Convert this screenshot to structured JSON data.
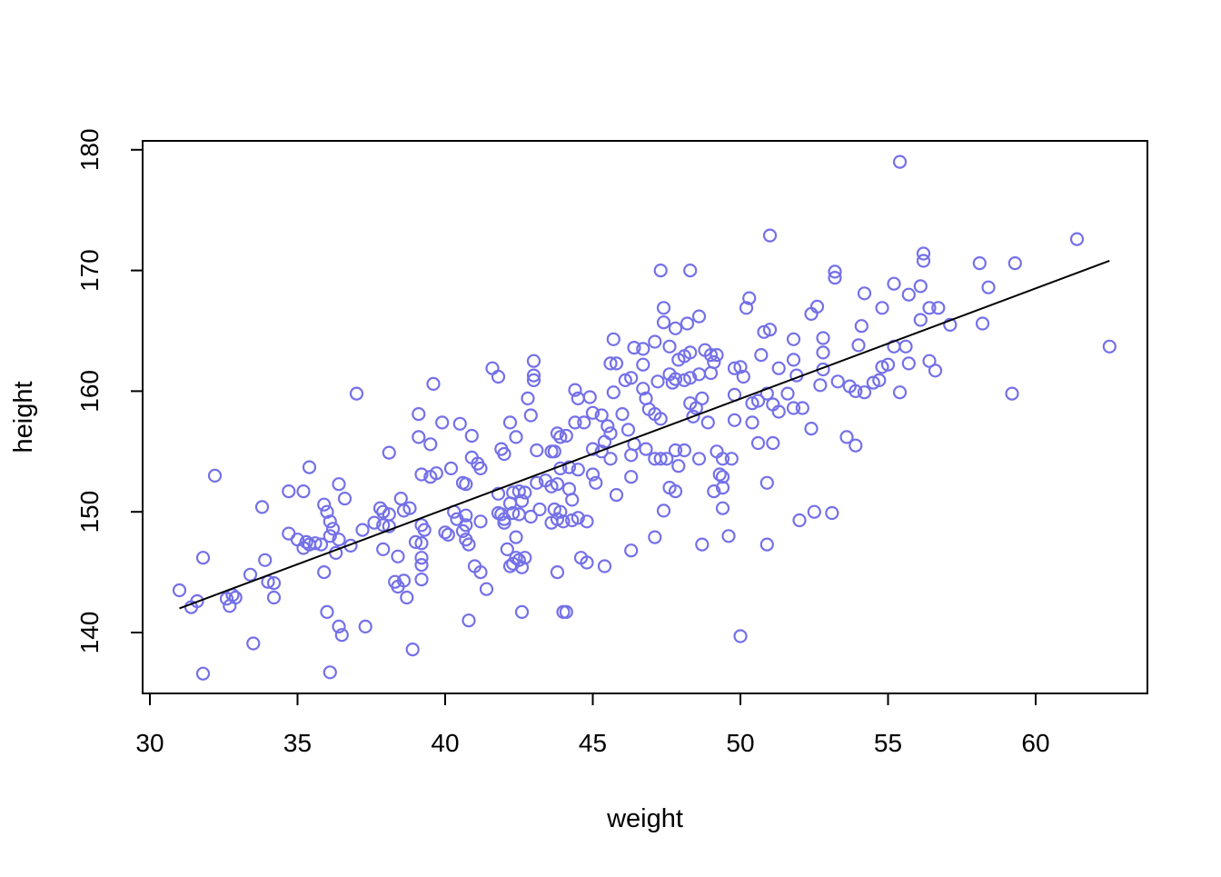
{
  "chart_data": {
    "type": "scatter",
    "title": "",
    "xlabel": "weight",
    "ylabel": "height",
    "x_ticks": [
      30,
      35,
      40,
      45,
      50,
      55,
      60
    ],
    "y_ticks": [
      140,
      150,
      160,
      170,
      180
    ],
    "xlim": [
      29.7,
      63.8
    ],
    "ylim": [
      134.9,
      180.8
    ],
    "grid": false,
    "legend": null,
    "point_color": "#7470E8",
    "line_color": "#000000",
    "frame_color": "#000000",
    "regression_line": {
      "x1": 31.0,
      "y1": 142.0,
      "x2": 62.5,
      "y2": 170.8
    },
    "points": [
      [
        55.4,
        179.0
      ],
      [
        51.0,
        172.9
      ],
      [
        61.4,
        172.6
      ],
      [
        56.2,
        171.4
      ],
      [
        56.2,
        170.8
      ],
      [
        58.1,
        170.6
      ],
      [
        59.3,
        170.6
      ],
      [
        47.3,
        170.0
      ],
      [
        48.3,
        170.0
      ],
      [
        53.2,
        169.9
      ],
      [
        53.2,
        169.4
      ],
      [
        55.2,
        168.9
      ],
      [
        56.1,
        168.7
      ],
      [
        58.4,
        168.6
      ],
      [
        54.2,
        168.1
      ],
      [
        55.7,
        168.0
      ],
      [
        50.3,
        167.7
      ],
      [
        52.6,
        167.0
      ],
      [
        50.2,
        166.9
      ],
      [
        47.4,
        166.9
      ],
      [
        54.8,
        166.9
      ],
      [
        56.4,
        166.9
      ],
      [
        56.7,
        166.9
      ],
      [
        52.4,
        166.4
      ],
      [
        48.6,
        166.2
      ],
      [
        47.4,
        165.7
      ],
      [
        47.8,
        165.2
      ],
      [
        48.2,
        165.6
      ],
      [
        51.0,
        165.1
      ],
      [
        54.1,
        165.4
      ],
      [
        56.1,
        165.9
      ],
      [
        57.1,
        165.5
      ],
      [
        58.2,
        165.6
      ],
      [
        45.7,
        164.3
      ],
      [
        50.8,
        164.9
      ],
      [
        51.8,
        164.3
      ],
      [
        52.8,
        164.4
      ],
      [
        54.0,
        163.8
      ],
      [
        55.2,
        163.7
      ],
      [
        55.6,
        163.7
      ],
      [
        62.5,
        163.7
      ],
      [
        46.4,
        163.6
      ],
      [
        47.1,
        164.1
      ],
      [
        47.6,
        163.7
      ],
      [
        46.7,
        163.5
      ],
      [
        48.3,
        163.2
      ],
      [
        48.8,
        163.4
      ],
      [
        49.0,
        163.0
      ],
      [
        49.2,
        163.0
      ],
      [
        47.9,
        162.6
      ],
      [
        48.1,
        162.9
      ],
      [
        50.7,
        163.0
      ],
      [
        51.8,
        162.6
      ],
      [
        52.8,
        163.2
      ],
      [
        43.0,
        162.5
      ],
      [
        45.6,
        162.3
      ],
      [
        45.8,
        162.3
      ],
      [
        46.7,
        162.2
      ],
      [
        49.1,
        162.4
      ],
      [
        54.8,
        162.0
      ],
      [
        55.0,
        162.2
      ],
      [
        55.7,
        162.3
      ],
      [
        56.4,
        162.5
      ],
      [
        51.9,
        161.3
      ],
      [
        52.8,
        161.8
      ],
      [
        56.6,
        161.7
      ],
      [
        41.6,
        161.9
      ],
      [
        41.8,
        161.2
      ],
      [
        43.0,
        161.3
      ],
      [
        43.0,
        160.9
      ],
      [
        46.1,
        160.9
      ],
      [
        46.3,
        161.1
      ],
      [
        47.6,
        161.4
      ],
      [
        47.8,
        161.0
      ],
      [
        48.1,
        160.9
      ],
      [
        48.3,
        161.1
      ],
      [
        48.6,
        161.4
      ],
      [
        49.0,
        161.5
      ],
      [
        49.8,
        161.9
      ],
      [
        50.0,
        162.0
      ],
      [
        50.1,
        161.2
      ],
      [
        51.3,
        161.9
      ],
      [
        39.6,
        160.6
      ],
      [
        44.4,
        160.1
      ],
      [
        44.5,
        159.4
      ],
      [
        45.7,
        159.9
      ],
      [
        46.7,
        160.2
      ],
      [
        47.2,
        160.8
      ],
      [
        47.7,
        160.7
      ],
      [
        52.7,
        160.5
      ],
      [
        53.3,
        160.8
      ],
      [
        53.7,
        160.4
      ],
      [
        53.9,
        160.0
      ],
      [
        54.2,
        159.9
      ],
      [
        54.5,
        160.7
      ],
      [
        54.7,
        160.9
      ],
      [
        55.4,
        159.9
      ],
      [
        59.2,
        159.8
      ],
      [
        37.0,
        159.8
      ],
      [
        42.8,
        159.4
      ],
      [
        44.9,
        159.5
      ],
      [
        46.8,
        159.4
      ],
      [
        48.3,
        159.0
      ],
      [
        48.5,
        158.6
      ],
      [
        48.7,
        159.4
      ],
      [
        49.8,
        159.7
      ],
      [
        50.4,
        159.0
      ],
      [
        50.6,
        159.2
      ],
      [
        50.9,
        159.8
      ],
      [
        51.6,
        159.8
      ],
      [
        51.1,
        158.9
      ],
      [
        51.3,
        158.3
      ],
      [
        51.8,
        158.6
      ],
      [
        52.1,
        158.6
      ],
      [
        39.1,
        158.1
      ],
      [
        42.9,
        158.0
      ],
      [
        45.0,
        158.2
      ],
      [
        45.3,
        158.0
      ],
      [
        46.0,
        158.1
      ],
      [
        46.9,
        158.5
      ],
      [
        47.1,
        158.1
      ],
      [
        47.3,
        157.7
      ],
      [
        48.4,
        157.9
      ],
      [
        39.9,
        157.4
      ],
      [
        40.5,
        157.3
      ],
      [
        42.2,
        157.4
      ],
      [
        44.4,
        157.4
      ],
      [
        44.7,
        157.4
      ],
      [
        45.5,
        157.1
      ],
      [
        45.6,
        156.5
      ],
      [
        48.9,
        157.4
      ],
      [
        49.8,
        157.6
      ],
      [
        50.4,
        157.4
      ],
      [
        46.2,
        156.8
      ],
      [
        52.4,
        156.9
      ],
      [
        39.1,
        156.2
      ],
      [
        39.5,
        155.6
      ],
      [
        40.9,
        156.3
      ],
      [
        42.4,
        156.2
      ],
      [
        43.8,
        156.5
      ],
      [
        43.9,
        156.2
      ],
      [
        44.1,
        156.3
      ],
      [
        45.4,
        155.8
      ],
      [
        46.4,
        155.6
      ],
      [
        53.6,
        156.2
      ],
      [
        53.9,
        155.5
      ],
      [
        41.9,
        155.2
      ],
      [
        42.0,
        154.8
      ],
      [
        43.1,
        155.1
      ],
      [
        43.6,
        155.0
      ],
      [
        43.7,
        155.0
      ],
      [
        45.0,
        155.2
      ],
      [
        45.3,
        155.0
      ],
      [
        45.6,
        154.4
      ],
      [
        46.3,
        154.7
      ],
      [
        50.6,
        155.7
      ],
      [
        51.1,
        155.7
      ],
      [
        46.8,
        155.2
      ],
      [
        47.1,
        154.4
      ],
      [
        47.3,
        154.4
      ],
      [
        47.5,
        154.4
      ],
      [
        47.8,
        155.1
      ],
      [
        48.1,
        155.1
      ],
      [
        47.9,
        153.8
      ],
      [
        48.6,
        154.4
      ],
      [
        49.2,
        155.0
      ],
      [
        49.4,
        154.4
      ],
      [
        49.7,
        154.4
      ],
      [
        38.1,
        154.9
      ],
      [
        40.9,
        154.5
      ],
      [
        41.1,
        154.0
      ],
      [
        41.2,
        153.6
      ],
      [
        40.2,
        153.6
      ],
      [
        39.2,
        153.1
      ],
      [
        39.5,
        152.9
      ],
      [
        39.7,
        153.2
      ],
      [
        32.2,
        153.0
      ],
      [
        35.4,
        153.7
      ],
      [
        40.6,
        152.4
      ],
      [
        40.7,
        152.3
      ],
      [
        43.9,
        153.6
      ],
      [
        44.2,
        153.7
      ],
      [
        44.5,
        153.5
      ],
      [
        43.1,
        152.4
      ],
      [
        43.4,
        152.6
      ],
      [
        43.6,
        152.1
      ],
      [
        43.8,
        152.3
      ],
      [
        44.2,
        151.9
      ],
      [
        45.0,
        153.1
      ],
      [
        45.1,
        152.4
      ],
      [
        46.3,
        152.9
      ],
      [
        49.3,
        153.1
      ],
      [
        49.4,
        152.9
      ],
      [
        34.7,
        151.7
      ],
      [
        35.2,
        151.7
      ],
      [
        36.4,
        152.3
      ],
      [
        41.8,
        151.5
      ],
      [
        42.3,
        151.6
      ],
      [
        42.5,
        151.7
      ],
      [
        42.7,
        151.6
      ],
      [
        44.3,
        151.0
      ],
      [
        45.8,
        151.4
      ],
      [
        47.6,
        152.0
      ],
      [
        47.8,
        151.7
      ],
      [
        49.1,
        151.7
      ],
      [
        49.4,
        152.0
      ],
      [
        50.9,
        152.4
      ],
      [
        36.6,
        151.1
      ],
      [
        38.5,
        151.1
      ],
      [
        33.8,
        150.4
      ],
      [
        35.9,
        150.6
      ],
      [
        42.2,
        150.7
      ],
      [
        42.6,
        150.9
      ],
      [
        36.0,
        150.0
      ],
      [
        36.1,
        149.2
      ],
      [
        36.2,
        148.6
      ],
      [
        37.8,
        150.3
      ],
      [
        37.9,
        150.0
      ],
      [
        38.1,
        149.8
      ],
      [
        37.6,
        149.1
      ],
      [
        37.9,
        148.9
      ],
      [
        38.1,
        148.8
      ],
      [
        38.6,
        150.1
      ],
      [
        38.8,
        150.3
      ],
      [
        40.3,
        150.0
      ],
      [
        40.4,
        149.4
      ],
      [
        40.7,
        149.7
      ],
      [
        40.6,
        148.4
      ],
      [
        40.7,
        148.9
      ],
      [
        41.2,
        149.2
      ],
      [
        41.8,
        149.9
      ],
      [
        41.9,
        149.8
      ],
      [
        42.0,
        149.4
      ],
      [
        42.0,
        149.1
      ],
      [
        42.3,
        149.9
      ],
      [
        42.5,
        149.8
      ],
      [
        42.9,
        149.6
      ],
      [
        43.2,
        150.2
      ],
      [
        43.7,
        150.2
      ],
      [
        43.9,
        150.0
      ],
      [
        43.8,
        149.4
      ],
      [
        43.6,
        149.1
      ],
      [
        44.0,
        149.2
      ],
      [
        44.3,
        149.3
      ],
      [
        44.5,
        149.5
      ],
      [
        44.8,
        149.2
      ],
      [
        47.4,
        150.1
      ],
      [
        49.4,
        150.3
      ],
      [
        52.0,
        149.3
      ],
      [
        52.5,
        150.0
      ],
      [
        53.1,
        149.9
      ],
      [
        39.2,
        148.9
      ],
      [
        39.3,
        148.5
      ],
      [
        34.7,
        148.2
      ],
      [
        35.0,
        147.7
      ],
      [
        35.3,
        147.5
      ],
      [
        35.4,
        147.3
      ],
      [
        35.2,
        147.0
      ],
      [
        35.6,
        147.4
      ],
      [
        35.8,
        147.3
      ],
      [
        36.1,
        148.0
      ],
      [
        36.4,
        147.7
      ],
      [
        36.8,
        147.2
      ],
      [
        36.3,
        146.6
      ],
      [
        37.2,
        148.5
      ],
      [
        37.9,
        146.9
      ],
      [
        40.0,
        148.3
      ],
      [
        40.1,
        148.1
      ],
      [
        40.7,
        147.7
      ],
      [
        40.8,
        147.3
      ],
      [
        39.0,
        147.5
      ],
      [
        39.2,
        147.4
      ],
      [
        42.4,
        147.9
      ],
      [
        47.1,
        147.9
      ],
      [
        48.7,
        147.3
      ],
      [
        49.6,
        148.0
      ],
      [
        50.9,
        147.3
      ],
      [
        46.3,
        146.8
      ],
      [
        31.8,
        146.2
      ],
      [
        33.9,
        146.0
      ],
      [
        42.1,
        146.9
      ],
      [
        42.4,
        146.2
      ],
      [
        42.5,
        146.0
      ],
      [
        42.3,
        145.7
      ],
      [
        42.2,
        145.5
      ],
      [
        42.6,
        145.4
      ],
      [
        42.7,
        146.2
      ],
      [
        39.2,
        146.2
      ],
      [
        39.2,
        145.6
      ],
      [
        38.4,
        146.3
      ],
      [
        44.6,
        146.2
      ],
      [
        44.8,
        145.8
      ],
      [
        41.0,
        145.5
      ],
      [
        41.2,
        145.0
      ],
      [
        43.8,
        145.0
      ],
      [
        45.4,
        145.5
      ],
      [
        35.9,
        145.0
      ],
      [
        33.4,
        144.8
      ],
      [
        34.0,
        144.2
      ],
      [
        34.2,
        144.1
      ],
      [
        38.3,
        144.2
      ],
      [
        38.4,
        143.8
      ],
      [
        38.6,
        144.3
      ],
      [
        39.2,
        144.4
      ],
      [
        41.4,
        143.6
      ],
      [
        31.0,
        143.5
      ],
      [
        32.6,
        142.8
      ],
      [
        32.8,
        143.1
      ],
      [
        32.9,
        142.9
      ],
      [
        32.7,
        142.2
      ],
      [
        34.2,
        142.9
      ],
      [
        38.7,
        142.9
      ],
      [
        31.4,
        142.1
      ],
      [
        31.6,
        142.6
      ],
      [
        36.0,
        141.7
      ],
      [
        42.6,
        141.7
      ],
      [
        44.0,
        141.7
      ],
      [
        44.1,
        141.7
      ],
      [
        40.8,
        141.0
      ],
      [
        36.4,
        140.5
      ],
      [
        36.5,
        139.8
      ],
      [
        37.3,
        140.5
      ],
      [
        50.0,
        139.7
      ],
      [
        33.5,
        139.1
      ],
      [
        38.9,
        138.6
      ],
      [
        31.8,
        136.6
      ],
      [
        36.1,
        136.7
      ]
    ]
  }
}
